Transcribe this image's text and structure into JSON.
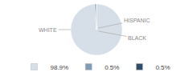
{
  "chart_data": {
    "type": "pie",
    "categories": [
      "WHITE",
      "HISPANIC",
      "BLACK"
    ],
    "values": [
      98.9,
      0.5,
      0.5
    ],
    "value_labels": [
      "98.9%",
      "0.5%",
      "0.5%"
    ],
    "colors": [
      "#d6dfe8",
      "#7d9db5",
      "#2e4d6b"
    ],
    "legend": "bottom"
  }
}
